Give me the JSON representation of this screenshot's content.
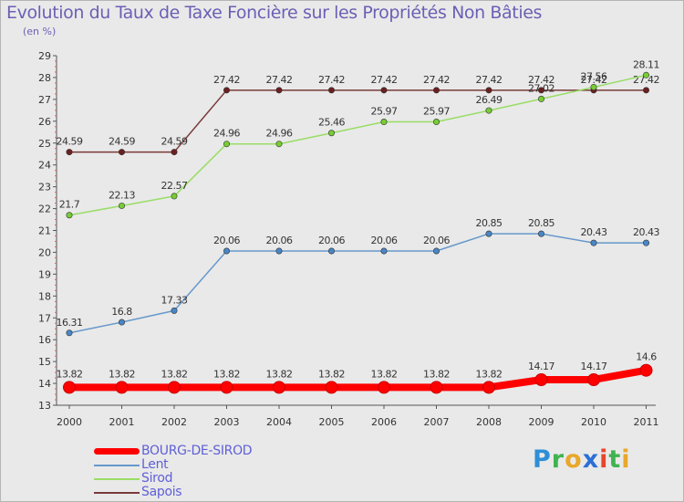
{
  "chart_data": {
    "type": "line",
    "title": "Evolution du Taux de Taxe Foncière sur les Propriétés Non Bâties",
    "ylabel": "(en %)",
    "xlabel": "",
    "categories": [
      "2000",
      "2001",
      "2002",
      "2003",
      "2004",
      "2005",
      "2006",
      "2007",
      "2008",
      "2009",
      "2010",
      "2011"
    ],
    "yticks": [
      "13",
      "14",
      "15",
      "16",
      "17",
      "18",
      "19",
      "20",
      "21",
      "22",
      "23",
      "24",
      "25",
      "26",
      "27",
      "28",
      "29"
    ],
    "ylim": [
      13,
      29
    ],
    "grid": false,
    "legend_position": "bottom-left",
    "series": [
      {
        "name": "BOURG-DE-SIROD",
        "color": "#ff0000",
        "values": [
          13.82,
          13.82,
          13.82,
          13.82,
          13.82,
          13.82,
          13.82,
          13.82,
          13.82,
          14.17,
          14.17,
          14.6
        ],
        "labels": [
          "13.82",
          "13.82",
          "13.82",
          "13.82",
          "13.82",
          "13.82",
          "13.82",
          "13.82",
          "13.82",
          "14.17",
          "14.17",
          "14.6"
        ]
      },
      {
        "name": "Lent",
        "color": "#6699cc",
        "marker_color": "#4a86c5",
        "values": [
          16.31,
          16.8,
          17.33,
          20.06,
          20.06,
          20.06,
          20.06,
          20.06,
          20.85,
          20.85,
          20.43,
          20.43
        ],
        "labels": [
          "16.31",
          "16.8",
          "17.33",
          "20.06",
          "20.06",
          "20.06",
          "20.06",
          "20.06",
          "20.85",
          "20.85",
          "20.43",
          "20.43"
        ]
      },
      {
        "name": "Sirod",
        "color": "#99dd66",
        "marker_color": "#77cc33",
        "values": [
          21.7,
          22.13,
          22.57,
          24.96,
          24.96,
          25.46,
          25.97,
          25.97,
          26.49,
          27.02,
          27.56,
          28.11
        ],
        "labels": [
          "21.7",
          "22.13",
          "22.57",
          "24.96",
          "24.96",
          "25.46",
          "25.97",
          "25.97",
          "26.49",
          "27.02",
          "27.56",
          "28.11"
        ]
      },
      {
        "name": "Sapois",
        "color": "#7a3a3a",
        "marker_color": "#6b2020",
        "values": [
          24.59,
          24.59,
          24.59,
          27.42,
          27.42,
          27.42,
          27.42,
          27.42,
          27.42,
          27.42,
          27.42,
          27.42
        ],
        "labels": [
          "24.59",
          "24.59",
          "24.59",
          "27.42",
          "27.42",
          "27.42",
          "27.42",
          "27.42",
          "27.42",
          "27.42",
          "27.42",
          "27.42"
        ]
      }
    ]
  },
  "brand": {
    "letters": [
      "P",
      "r",
      "o",
      "x",
      "i",
      "t",
      "i"
    ],
    "colors": [
      "#2f8fd6",
      "#3fb34f",
      "#e8a82b",
      "#2b6fd6",
      "#e8452b",
      "#3fb34f",
      "#e8a82b"
    ]
  }
}
